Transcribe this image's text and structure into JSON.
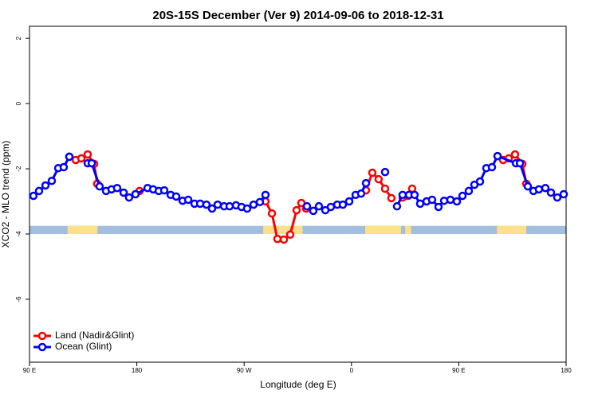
{
  "chart_data": {
    "type": "line",
    "title": "20S-15S December (Ver 9)   2014-09-06 to 2018-12-31",
    "x_label": "Longitude (deg E)",
    "y_label": "XCO2 - MLO trend (ppm)",
    "xlim": [
      90,
      540
    ],
    "xticks": [
      {
        "value": 90,
        "label": "90 E"
      },
      {
        "value": 180,
        "label": "180"
      },
      {
        "value": 270,
        "label": "90 W"
      },
      {
        "value": 360,
        "label": "0"
      },
      {
        "value": 450,
        "label": "90 E"
      },
      {
        "value": 540,
        "label": "180"
      }
    ],
    "ylim": [
      -7.93,
      2.37
    ],
    "yticks": [
      -6,
      -4,
      -2,
      0,
      2
    ],
    "legend": "bottom-left",
    "surface_band": {
      "y": [
        -3.75,
        -4.0
      ],
      "ocean_color": "#a4bedf",
      "land_color": "#fde08a",
      "land": [
        [
          122,
          147
        ],
        [
          286,
          319
        ],
        [
          371.5,
          401.6
        ],
        [
          405,
          410
        ],
        [
          482,
          506.6
        ]
      ]
    },
    "series": [
      {
        "name": "Land (Nadir&Glint)",
        "color": "#ff0000",
        "x": [
          123.4,
          128.8,
          133.5,
          138.8,
          144.2,
          146.8,
          null,
          182.3,
          null,
          287.9,
          293.3,
          297.9,
          303.3,
          308.6,
          314.0,
          318.0,
          322.0,
          null,
          372.2,
          377.5,
          382.8,
          388.2,
          393.5,
          null,
          402.9,
          407.6,
          410.9,
          null,
          482.5,
          487.2,
          491.9,
          497.2,
          503.3,
          506.6
        ],
        "values": [
          -1.63,
          -1.73,
          -1.68,
          -1.56,
          -1.85,
          -2.46,
          null,
          -2.68,
          null,
          -3.0,
          -3.37,
          -4.15,
          -4.17,
          -4.02,
          -3.27,
          -3.05,
          -3.22,
          null,
          -2.66,
          -2.12,
          -2.32,
          -2.61,
          -2.9,
          null,
          -2.88,
          -2.83,
          -2.61,
          null,
          -1.61,
          -1.73,
          -1.68,
          -1.56,
          -1.85,
          -2.46
        ]
      },
      {
        "name": "Ocean (Glint)",
        "color": "#0000ff",
        "x": [
          93.3,
          98.0,
          103.4,
          108.7,
          114.1,
          118.7,
          123.4,
          null,
          138.8,
          142.2,
          148.8,
          154.2,
          158.8,
          163.5,
          168.9,
          173.5,
          178.9,
          189.0,
          193.7,
          198.4,
          203.0,
          208.4,
          213.0,
          218.4,
          223.1,
          228.4,
          233.1,
          238.4,
          243.1,
          247.8,
          253.2,
          257.8,
          263.2,
          267.8,
          272.5,
          277.9,
          283.2,
          287.9,
          null,
          322.7,
          328.0,
          332.7,
          338.1,
          342.7,
          348.1,
          352.8,
          358.1,
          363.5,
          368.1,
          372.2,
          null,
          388.2,
          null,
          398.2,
          402.9,
          408.3,
          412.9,
          417.6,
          423.0,
          427.6,
          433.0,
          437.7,
          443.0,
          448.4,
          453.1,
          458.4,
          463.1,
          467.8,
          473.1,
          477.8,
          482.5,
          497.9,
          501.3,
          507.9,
          512.6,
          517.2,
          522.6,
          527.3,
          532.6,
          538.0
        ],
        "values": [
          -2.83,
          -2.68,
          -2.51,
          -2.37,
          -1.98,
          -1.95,
          -1.63,
          null,
          -1.83,
          -1.83,
          -2.54,
          -2.68,
          -2.63,
          -2.59,
          -2.73,
          -2.88,
          -2.78,
          -2.59,
          -2.63,
          -2.68,
          -2.66,
          -2.8,
          -2.85,
          -2.98,
          -2.95,
          -3.07,
          -3.07,
          -3.1,
          -3.22,
          -3.1,
          -3.15,
          -3.15,
          -3.12,
          -3.17,
          -3.22,
          -3.1,
          -3.02,
          -2.8,
          null,
          -3.15,
          -3.29,
          -3.15,
          -3.27,
          -3.17,
          -3.1,
          -3.1,
          -3.0,
          -2.8,
          -2.76,
          -2.44,
          null,
          -2.1,
          null,
          -3.15,
          -2.8,
          -2.8,
          -2.8,
          -3.07,
          -3.0,
          -2.95,
          -3.17,
          -2.98,
          -2.95,
          -3.0,
          -2.83,
          -2.68,
          -2.49,
          -2.39,
          -1.98,
          -1.95,
          -1.61,
          -1.83,
          -1.83,
          -2.54,
          -2.68,
          -2.63,
          -2.59,
          -2.73,
          -2.88,
          -2.78
        ]
      }
    ]
  }
}
